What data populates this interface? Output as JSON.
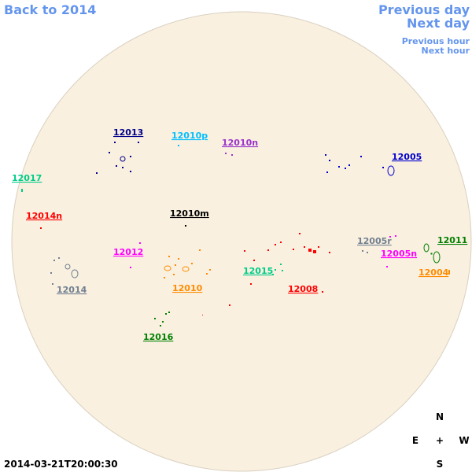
{
  "navigation": {
    "back": "Back to 2014",
    "previous_day": "Previous day",
    "next_day": "Next day",
    "previous_hour": "Previous hour",
    "next_hour": "Next hour"
  },
  "regions": [
    "12013",
    "12010p",
    "12010n",
    "12005",
    "12017",
    "12014n",
    "12010m",
    "12012",
    "12005r",
    "12011",
    "12005n",
    "12015",
    "12004",
    "12010",
    "12008",
    "12014",
    "12016"
  ],
  "compass": {
    "north": "N",
    "east": "E",
    "center": "+",
    "west": "W",
    "south": "S"
  },
  "timestamp": "2014-03-21T20:00:30"
}
